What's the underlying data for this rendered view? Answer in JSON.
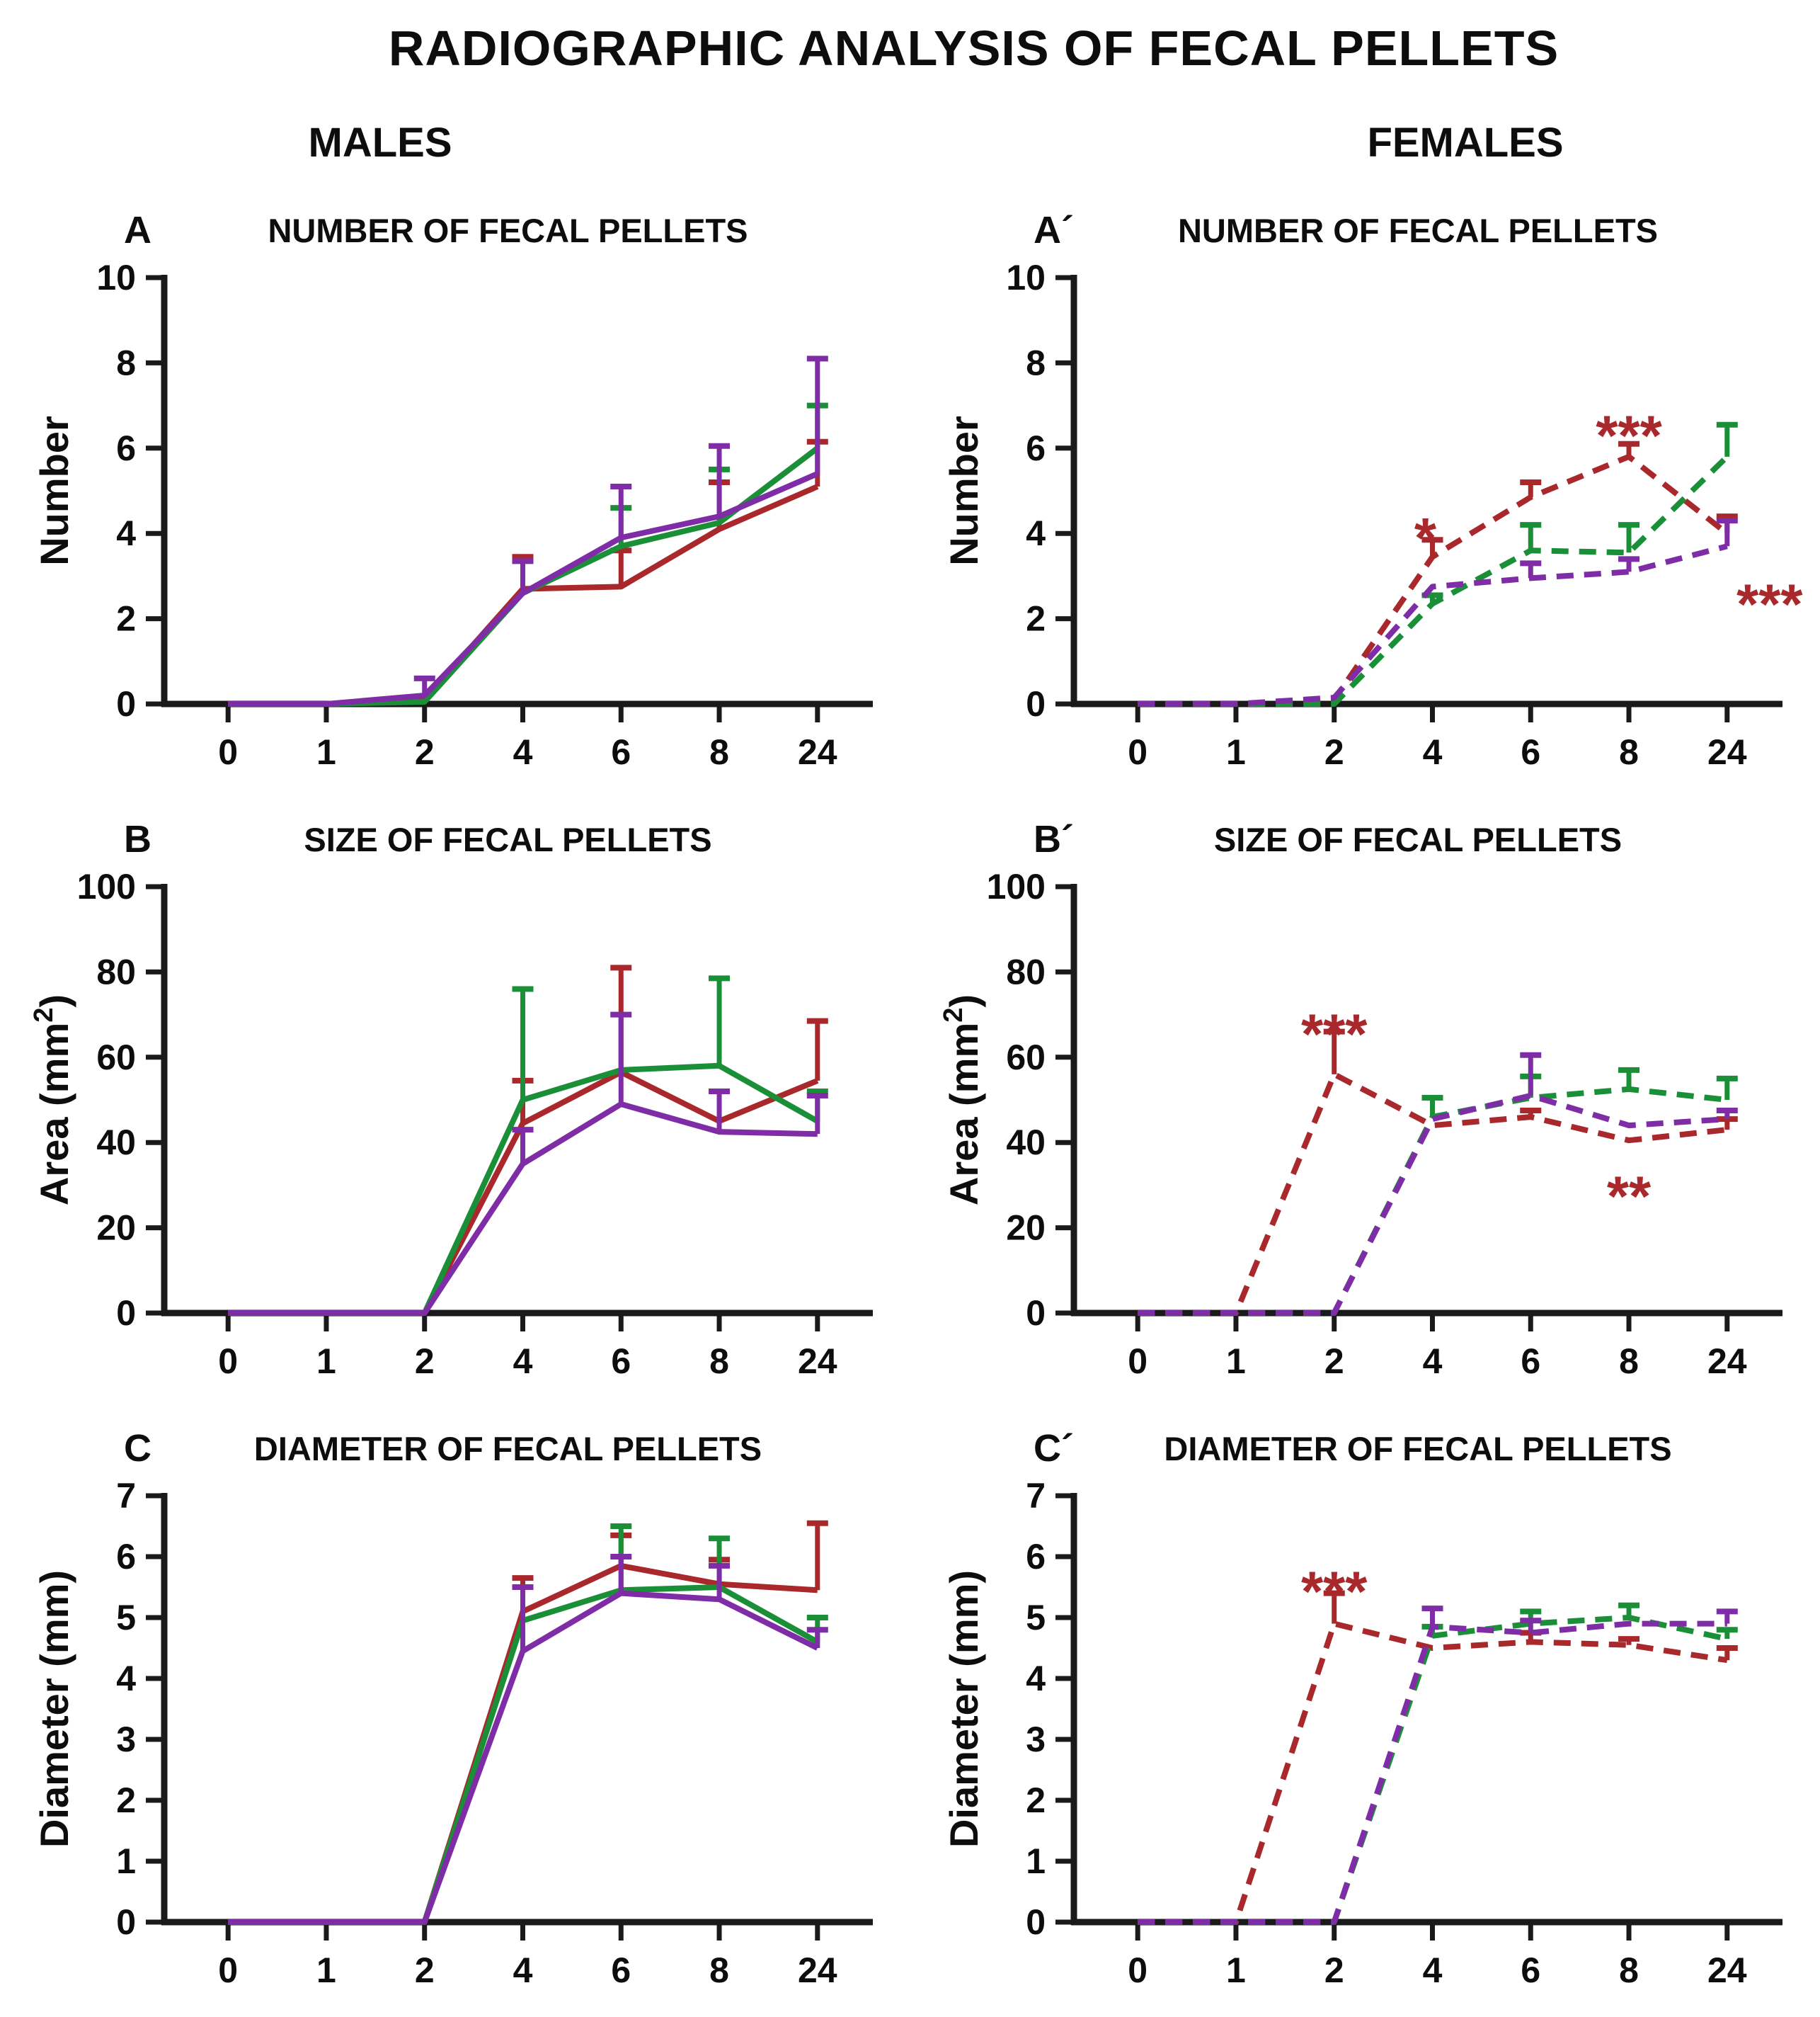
{
  "title": "RADIOGRAPHIC ANALYSIS OF FECAL PELLETS",
  "column_headers": {
    "left": "MALES",
    "right": "FEMALES"
  },
  "colors": {
    "red": "#a9282c",
    "green": "#1b8f38",
    "purple": "#7f2da6",
    "axis": "#1a1a1a",
    "annotation": "#a9282c"
  },
  "chart_data": [
    {
      "type": "line",
      "panel_label": "A",
      "title": "NUMBER OF FECAL PELLETS",
      "ylabel_parts": [
        {
          "t": "Number"
        }
      ],
      "ylim": [
        0,
        10
      ],
      "yticks": [
        0,
        2,
        4,
        6,
        8,
        10
      ],
      "categories": [
        "0",
        "1",
        "2",
        "4",
        "6",
        "8",
        "24"
      ],
      "line_style": "solid",
      "legend": "none",
      "series": [
        {
          "name": "red-group",
          "color": "red",
          "values": [
            0,
            0,
            0.1,
            2.7,
            2.75,
            4.1,
            5.1
          ],
          "upper": [
            null,
            null,
            null,
            3.45,
            3.6,
            5.2,
            6.15
          ]
        },
        {
          "name": "green-group",
          "color": "green",
          "values": [
            0,
            0,
            0.05,
            2.6,
            3.7,
            4.25,
            6.0
          ],
          "upper": [
            null,
            null,
            null,
            null,
            4.6,
            5.5,
            7.0
          ]
        },
        {
          "name": "purple-group",
          "color": "purple",
          "values": [
            0,
            0,
            0.2,
            2.6,
            3.9,
            4.4,
            5.4
          ],
          "upper": [
            null,
            null,
            0.6,
            3.35,
            5.1,
            6.05,
            8.1
          ]
        }
      ],
      "annotations": []
    },
    {
      "type": "line",
      "panel_label": "A´",
      "title": "NUMBER OF FECAL PELLETS",
      "ylabel_parts": [
        {
          "t": "Number"
        }
      ],
      "ylim": [
        0,
        10
      ],
      "yticks": [
        0,
        2,
        4,
        6,
        8,
        10
      ],
      "categories": [
        "0",
        "1",
        "2",
        "4",
        "6",
        "8",
        "24"
      ],
      "line_style": "dashed",
      "legend": "none",
      "series": [
        {
          "name": "red-group",
          "color": "red",
          "values": [
            0,
            0,
            0.1,
            3.45,
            4.85,
            5.8,
            4.0
          ],
          "upper": [
            null,
            null,
            null,
            3.85,
            5.2,
            6.1,
            4.4
          ]
        },
        {
          "name": "green-group",
          "color": "green",
          "values": [
            0,
            0,
            0,
            2.35,
            3.6,
            3.55,
            5.8
          ],
          "upper": [
            null,
            null,
            null,
            2.55,
            4.2,
            4.2,
            6.55
          ]
        },
        {
          "name": "purple-group",
          "color": "purple",
          "values": [
            0,
            0,
            0.15,
            2.75,
            2.95,
            3.1,
            3.7
          ],
          "upper": [
            null,
            null,
            null,
            null,
            3.3,
            3.4,
            4.3
          ]
        }
      ],
      "annotations": [
        {
          "text": "*",
          "ci": 3,
          "dx": -10,
          "y": 4.35
        },
        {
          "text": "***",
          "ci": 5,
          "dx": 0,
          "y": 6.75
        },
        {
          "text": "***",
          "ci": 6,
          "dx": 60,
          "y": 2.8
        }
      ]
    },
    {
      "type": "line",
      "panel_label": "B",
      "title": "SIZE OF FECAL PELLETS",
      "ylabel_parts": [
        {
          "t": "Area (mm"
        },
        {
          "t": "2",
          "sup": true
        },
        {
          "t": ")"
        }
      ],
      "ylim": [
        0,
        100
      ],
      "yticks": [
        0,
        20,
        40,
        60,
        80,
        100
      ],
      "categories": [
        "0",
        "1",
        "2",
        "4",
        "6",
        "8",
        "24"
      ],
      "line_style": "solid",
      "legend": "none",
      "series": [
        {
          "name": "red-group",
          "color": "red",
          "values": [
            0,
            0,
            0,
            44.5,
            56.5,
            45,
            54.5
          ],
          "upper": [
            null,
            null,
            null,
            54.5,
            81,
            null,
            68.5
          ]
        },
        {
          "name": "green-group",
          "color": "green",
          "values": [
            0,
            0,
            0,
            50,
            57,
            58,
            45
          ],
          "upper": [
            null,
            null,
            null,
            76,
            null,
            78.5,
            52
          ]
        },
        {
          "name": "purple-group",
          "color": "purple",
          "values": [
            0,
            0,
            0,
            35,
            49,
            42.5,
            42
          ],
          "upper": [
            null,
            null,
            null,
            43,
            70,
            52,
            51
          ]
        }
      ],
      "annotations": []
    },
    {
      "type": "line",
      "panel_label": "B´",
      "title": "SIZE OF FECAL PELLETS",
      "ylabel_parts": [
        {
          "t": "Area (mm"
        },
        {
          "t": "2",
          "sup": true
        },
        {
          "t": ")"
        }
      ],
      "ylim": [
        0,
        100
      ],
      "yticks": [
        0,
        20,
        40,
        60,
        80,
        100
      ],
      "categories": [
        "0",
        "1",
        "2",
        "4",
        "6",
        "8",
        "24"
      ],
      "line_style": "dashed",
      "legend": "none",
      "series": [
        {
          "name": "red-group",
          "color": "red",
          "values": [
            0,
            0,
            56,
            44,
            46,
            40.5,
            43
          ],
          "upper": [
            null,
            null,
            66,
            null,
            47.5,
            null,
            45.5
          ]
        },
        {
          "name": "green-group",
          "color": "green",
          "values": [
            0,
            0,
            0,
            46,
            50.5,
            52.5,
            50
          ],
          "upper": [
            null,
            null,
            null,
            50.5,
            55.5,
            57,
            55
          ]
        },
        {
          "name": "purple-group",
          "color": "purple",
          "values": [
            0,
            0,
            0,
            45.5,
            51,
            44,
            45.5
          ],
          "upper": [
            null,
            null,
            null,
            null,
            60.5,
            null,
            47.5
          ]
        }
      ],
      "annotations": [
        {
          "text": "***",
          "ci": 2,
          "dx": 0,
          "y": 70
        },
        {
          "text": "**",
          "ci": 5,
          "dx": 0,
          "y": 32
        }
      ]
    },
    {
      "type": "line",
      "panel_label": "C",
      "title": "DIAMETER OF FECAL PELLETS",
      "ylabel_parts": [
        {
          "t": "Diameter (mm)"
        }
      ],
      "ylim": [
        0,
        7
      ],
      "yticks": [
        0,
        1,
        2,
        3,
        4,
        5,
        6,
        7
      ],
      "categories": [
        "0",
        "1",
        "2",
        "4",
        "6",
        "8",
        "24"
      ],
      "line_style": "solid",
      "legend": "none",
      "series": [
        {
          "name": "red-group",
          "color": "red",
          "values": [
            0,
            0,
            0,
            5.1,
            5.85,
            5.55,
            5.45
          ],
          "upper": [
            null,
            null,
            null,
            5.65,
            6.35,
            5.95,
            6.55
          ]
        },
        {
          "name": "green-group",
          "color": "green",
          "values": [
            0,
            0,
            0,
            4.95,
            5.45,
            5.5,
            4.6
          ],
          "upper": [
            null,
            null,
            null,
            null,
            6.5,
            6.3,
            5.0
          ]
        },
        {
          "name": "purple-group",
          "color": "purple",
          "values": [
            0,
            0,
            0,
            4.45,
            5.4,
            5.3,
            4.5
          ],
          "upper": [
            null,
            null,
            null,
            5.5,
            6.0,
            5.85,
            4.8
          ]
        }
      ],
      "annotations": []
    },
    {
      "type": "line",
      "panel_label": "C´",
      "title": "DIAMETER OF FECAL PELLETS",
      "ylabel_parts": [
        {
          "t": "Diameter (mm)"
        }
      ],
      "ylim": [
        0,
        7
      ],
      "yticks": [
        0,
        1,
        2,
        3,
        4,
        5,
        6,
        7
      ],
      "categories": [
        "0",
        "1",
        "2",
        "4",
        "6",
        "8",
        "24"
      ],
      "line_style": "dashed",
      "legend": "none",
      "series": [
        {
          "name": "red-group",
          "color": "red",
          "values": [
            0,
            0,
            4.9,
            4.5,
            4.6,
            4.55,
            4.3
          ],
          "upper": [
            null,
            null,
            5.4,
            null,
            4.75,
            4.65,
            4.5
          ]
        },
        {
          "name": "green-group",
          "color": "green",
          "values": [
            0,
            0,
            0,
            4.7,
            4.9,
            5.0,
            4.65
          ],
          "upper": [
            null,
            null,
            null,
            4.85,
            5.1,
            5.2,
            4.8
          ]
        },
        {
          "name": "purple-group",
          "color": "purple",
          "values": [
            0,
            0,
            0,
            4.85,
            4.75,
            4.9,
            4.9
          ],
          "upper": [
            null,
            null,
            null,
            5.15,
            4.95,
            null,
            5.1
          ]
        }
      ],
      "annotations": [
        {
          "text": "***",
          "ci": 2,
          "dx": 0,
          "y": 5.75
        }
      ]
    }
  ]
}
